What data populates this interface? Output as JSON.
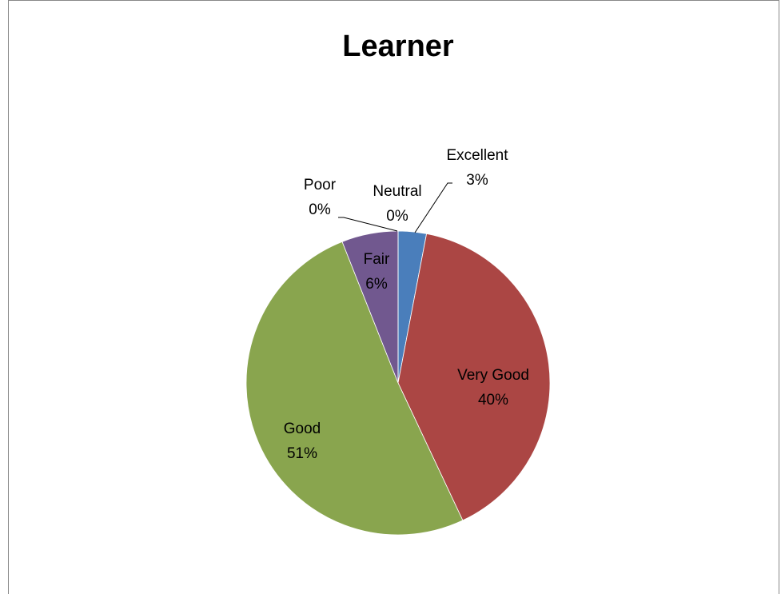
{
  "chart_data": {
    "type": "pie",
    "title": "Learner",
    "categories": [
      "Excellent",
      "Very Good",
      "Good",
      "Fair",
      "Poor",
      "Neutral"
    ],
    "values": [
      3,
      40,
      51,
      6,
      0,
      0
    ],
    "value_labels": [
      "3%",
      "40%",
      "51%",
      "6%",
      "0%",
      "0%"
    ],
    "colors": [
      "#4a7ebb",
      "#ab4644",
      "#89a54e",
      "#71588f",
      "#3d9bb5",
      "#e08a3a"
    ]
  }
}
